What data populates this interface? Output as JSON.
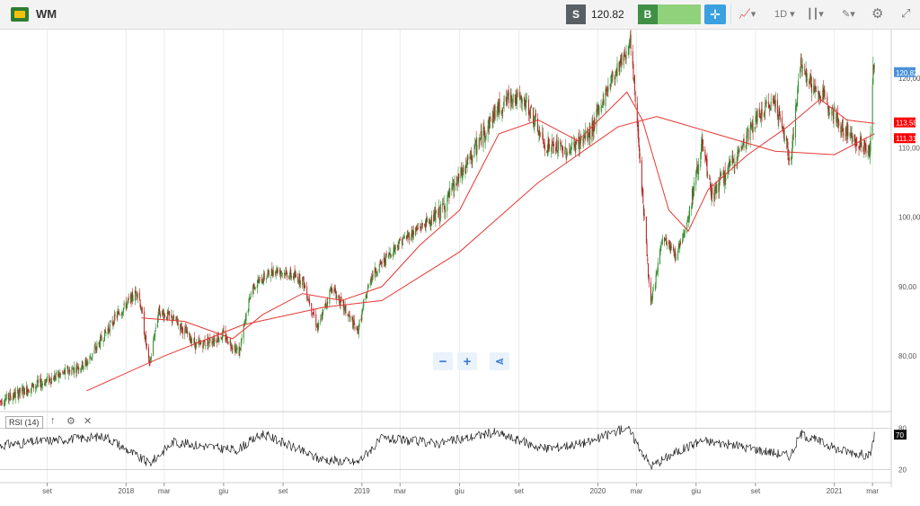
{
  "header": {
    "symbol": "WM",
    "sell_label": "S",
    "sell_price": "120.82",
    "buy_label": "B",
    "interval": "1D",
    "icons": [
      "wm-logo",
      "crosshair-icon",
      "chart-type-icon",
      "candles-icon",
      "draw-icon",
      "gear-icon",
      "expand-icon"
    ]
  },
  "controls": {
    "zoom_out": "−",
    "zoom_in": "+",
    "share": "share-icon"
  },
  "colors": {
    "up": "#2f8f2f",
    "down": "#b22222",
    "ma": "#e53935",
    "last_price": "#4a90d9",
    "ma_tag": "#ff0000",
    "rsi_line": "#222222"
  },
  "chart_data": {
    "type": "candlestick",
    "y_ticks": [
      "120,00",
      "110,00",
      "100,00",
      "90,00",
      "80,00"
    ],
    "y_tick_values": [
      120,
      110,
      100,
      90,
      80
    ],
    "ylim": [
      72,
      127
    ],
    "x_labels": [
      "set",
      "2018",
      "mar",
      "giu",
      "set",
      "2019",
      "mar",
      "giu",
      "set",
      "2020",
      "mar",
      "giu",
      "set",
      "2021",
      "mar"
    ],
    "x_label_dates": [
      "2017-09-01",
      "2018-01-01",
      "2018-03-01",
      "2018-06-01",
      "2018-09-01",
      "2019-01-01",
      "2019-03-01",
      "2019-06-01",
      "2019-09-01",
      "2020-01-01",
      "2020-03-01",
      "2020-06-01",
      "2020-09-01",
      "2021-01-01",
      "2021-03-01"
    ],
    "price_path": [
      [
        "2017-06-20",
        73.5
      ],
      [
        "2017-09-01",
        76.5
      ],
      [
        "2017-11-01",
        79.0
      ],
      [
        "2017-12-15",
        85.5
      ],
      [
        "2018-01-20",
        89.5
      ],
      [
        "2018-02-06",
        78.5
      ],
      [
        "2018-02-20",
        86.5
      ],
      [
        "2018-03-20",
        85.0
      ],
      [
        "2018-04-20",
        81.5
      ],
      [
        "2018-06-01",
        83.0
      ],
      [
        "2018-06-25",
        80.5
      ],
      [
        "2018-07-15",
        90.0
      ],
      [
        "2018-08-20",
        92.5
      ],
      [
        "2018-10-01",
        91.0
      ],
      [
        "2018-10-25",
        84.0
      ],
      [
        "2018-11-15",
        90.0
      ],
      [
        "2018-12-25",
        83.5
      ],
      [
        "2019-01-15",
        91.5
      ],
      [
        "2019-03-01",
        96.5
      ],
      [
        "2019-05-01",
        100.5
      ],
      [
        "2019-06-15",
        108.0
      ],
      [
        "2019-07-25",
        115.0
      ],
      [
        "2019-08-20",
        117.5
      ],
      [
        "2019-09-15",
        116.0
      ],
      [
        "2019-10-10",
        110.5
      ],
      [
        "2019-11-15",
        109.5
      ],
      [
        "2019-12-20",
        112.0
      ],
      [
        "2020-01-20",
        119.5
      ],
      [
        "2020-02-20",
        125.0
      ],
      [
        "2020-03-01",
        115.0
      ],
      [
        "2020-03-23",
        87.0
      ],
      [
        "2020-04-10",
        97.0
      ],
      [
        "2020-05-01",
        94.5
      ],
      [
        "2020-05-20",
        100.0
      ],
      [
        "2020-06-10",
        110.5
      ],
      [
        "2020-06-25",
        103.0
      ],
      [
        "2020-08-01",
        108.5
      ],
      [
        "2020-09-01",
        114.0
      ],
      [
        "2020-10-01",
        117.0
      ],
      [
        "2020-10-25",
        108.0
      ],
      [
        "2020-11-10",
        122.5
      ],
      [
        "2020-12-01",
        118.0
      ],
      [
        "2020-12-20",
        117.0
      ],
      [
        "2021-01-10",
        113.0
      ],
      [
        "2021-02-05",
        111.0
      ],
      [
        "2021-02-25",
        109.5
      ],
      [
        "2021-03-02",
        121.5
      ],
      [
        "2021-03-04",
        120.82
      ]
    ],
    "ma_fast_path": [
      [
        "2018-01-25",
        85.5
      ],
      [
        "2018-04-01",
        85.0
      ],
      [
        "2018-06-15",
        82.5
      ],
      [
        "2018-08-01",
        86.0
      ],
      [
        "2018-10-01",
        89.0
      ],
      [
        "2018-12-01",
        88.0
      ],
      [
        "2019-02-01",
        90.0
      ],
      [
        "2019-04-01",
        96.0
      ],
      [
        "2019-06-01",
        101.0
      ],
      [
        "2019-08-01",
        112.0
      ],
      [
        "2019-10-01",
        114.0
      ],
      [
        "2019-12-01",
        111.0
      ],
      [
        "2020-02-15",
        118.0
      ],
      [
        "2020-03-10",
        114.0
      ],
      [
        "2020-04-20",
        101.0
      ],
      [
        "2020-05-20",
        98.0
      ],
      [
        "2020-06-20",
        104.0
      ],
      [
        "2020-08-20",
        109.0
      ],
      [
        "2020-10-20",
        113.0
      ],
      [
        "2020-12-10",
        117.0
      ],
      [
        "2021-01-20",
        114.0
      ],
      [
        "2021-03-04",
        113.5
      ]
    ],
    "ma_slow_path": [
      [
        "2017-11-01",
        75.0
      ],
      [
        "2018-03-01",
        80.0
      ],
      [
        "2018-07-01",
        84.5
      ],
      [
        "2018-11-01",
        87.0
      ],
      [
        "2019-02-01",
        88.0
      ],
      [
        "2019-06-01",
        95.0
      ],
      [
        "2019-10-01",
        105.0
      ],
      [
        "2020-02-01",
        113.0
      ],
      [
        "2020-04-01",
        114.5
      ],
      [
        "2020-07-01",
        112.0
      ],
      [
        "2020-10-01",
        109.5
      ],
      [
        "2021-01-01",
        109.0
      ],
      [
        "2021-03-04",
        112.0
      ]
    ],
    "last_price_tag": "120,82",
    "ma_tags": [
      {
        "value": 113.58,
        "label": "113,58"
      },
      {
        "value": 111.31,
        "label": "111,31"
      }
    ],
    "rsi": {
      "label": "RSI (14)",
      "ylim": [
        10,
        95
      ],
      "levels": [
        80,
        20
      ],
      "level_labels": [
        "80",
        "20"
      ],
      "last": "70",
      "path": [
        [
          "2017-06-20",
          55
        ],
        [
          "2017-09-01",
          62
        ],
        [
          "2017-12-01",
          68
        ],
        [
          "2018-02-06",
          28
        ],
        [
          "2018-03-15",
          60
        ],
        [
          "2018-06-20",
          48
        ],
        [
          "2018-08-01",
          72
        ],
        [
          "2018-10-25",
          36
        ],
        [
          "2018-12-25",
          30
        ],
        [
          "2019-02-01",
          65
        ],
        [
          "2019-05-01",
          58
        ],
        [
          "2019-07-25",
          74
        ],
        [
          "2019-10-10",
          50
        ],
        [
          "2019-12-20",
          60
        ],
        [
          "2020-02-15",
          82
        ],
        [
          "2020-03-23",
          25
        ],
        [
          "2020-05-01",
          45
        ],
        [
          "2020-06-10",
          62
        ],
        [
          "2020-08-01",
          55
        ],
        [
          "2020-10-25",
          40
        ],
        [
          "2020-11-10",
          72
        ],
        [
          "2021-01-10",
          48
        ],
        [
          "2021-02-25",
          40
        ],
        [
          "2021-03-04",
          70
        ]
      ]
    }
  }
}
